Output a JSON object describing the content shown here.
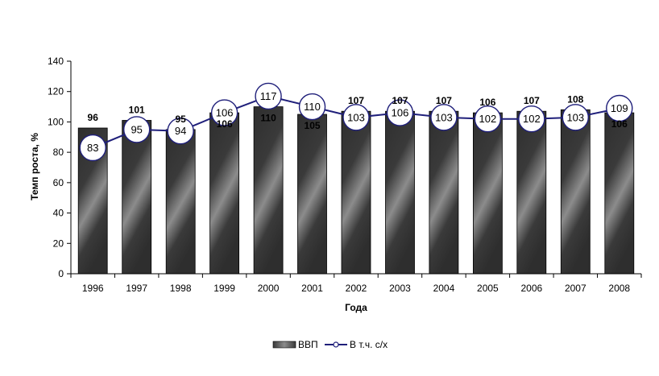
{
  "chart_data": {
    "type": "bar",
    "title": "",
    "xlabel": "Года",
    "ylabel": "Темп роста, %",
    "ylim": [
      0,
      140
    ],
    "yticks": [
      0,
      20,
      40,
      60,
      80,
      100,
      120,
      140
    ],
    "categories": [
      "1996",
      "1997",
      "1998",
      "1999",
      "2000",
      "2001",
      "2002",
      "2003",
      "2004",
      "2005",
      "2006",
      "2007",
      "2008"
    ],
    "series": [
      {
        "name": "ВВП",
        "type": "bar",
        "values": [
          96,
          101,
          95,
          106,
          110,
          105,
          107,
          107,
          107,
          106,
          107,
          108,
          106
        ]
      },
      {
        "name": "В т.ч. с/х",
        "type": "line",
        "values": [
          83,
          95,
          94,
          106,
          117,
          110,
          103,
          106,
          103,
          102,
          102,
          103,
          109
        ]
      }
    ],
    "legend_position": "bottom",
    "colors": {
      "bar_dark": "#2f2f2f",
      "bar_light": "#8a8a8a",
      "line": "#1f1f7a",
      "marker_fill": "#ffffff",
      "axis": "#000000"
    }
  }
}
